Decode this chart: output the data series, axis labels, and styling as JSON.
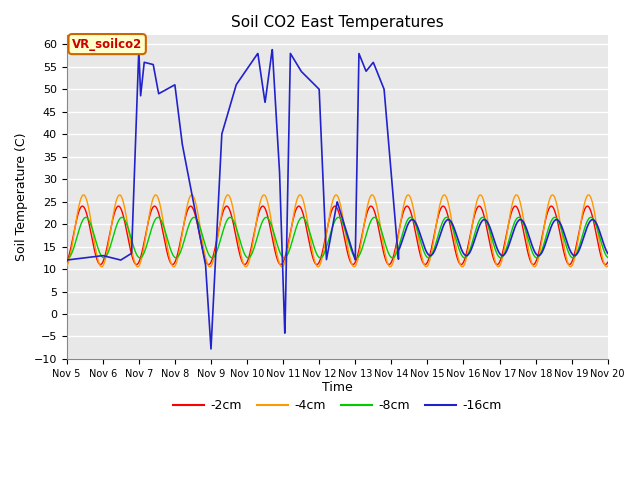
{
  "title": "Soil CO2 East Temperatures",
  "xlabel": "Time",
  "ylabel": "Soil Temperature (C)",
  "ylim": [
    -10,
    62
  ],
  "xlim": [
    0,
    15
  ],
  "background_color": "#e8e8e8",
  "grid_color": "white",
  "colors": {
    "2cm": "#ff0000",
    "4cm": "#ff9900",
    "8cm": "#00cc00",
    "16cm": "#2222cc"
  },
  "legend_labels": [
    "-2cm",
    "-4cm",
    "-8cm",
    "-16cm"
  ],
  "annotation_text": "VR_soilco2",
  "annotation_box_color": "#ffffcc",
  "annotation_border_color": "#cc6600",
  "annotation_text_color": "#cc0000",
  "yticks": [
    -10,
    -5,
    0,
    5,
    10,
    15,
    20,
    25,
    30,
    35,
    40,
    45,
    50,
    55,
    60
  ],
  "xtick_labels": [
    "Nov 5",
    "Nov 6",
    "Nov 7",
    "Nov 8",
    "Nov 9",
    "Nov 10",
    "Nov 11",
    "Nov 12",
    "Nov 13",
    "Nov 14",
    "Nov 15",
    "Nov 16",
    "Nov 17",
    "Nov 18",
    "Nov 19",
    "Nov 20"
  ]
}
